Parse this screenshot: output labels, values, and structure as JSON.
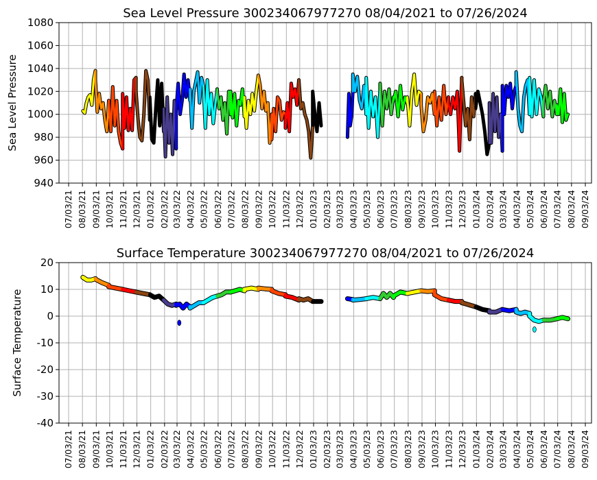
{
  "chart_data": [
    {
      "type": "line",
      "title": "Sea Level Pressure 300234067977270  08/04/2021 to 07/26/2024",
      "xlabel": "",
      "ylabel": "Sea Level Pressure",
      "ylim": [
        940,
        1080
      ],
      "yticks": [
        940,
        960,
        980,
        1000,
        1020,
        1040,
        1060,
        1080
      ],
      "key": "p",
      "grid": true
    },
    {
      "type": "line",
      "title": "Surface Temperature 300234067977270  08/04/2021 to 07/26/2024",
      "xlabel": "",
      "ylabel": "Surface Temperature",
      "ylim": [
        -40,
        20
      ],
      "yticks": [
        -40,
        -30,
        -20,
        -10,
        0,
        10,
        20
      ],
      "key": "t",
      "grid": true
    }
  ],
  "x_range": [
    "2021-07-03",
    "2024-09-03"
  ],
  "x_ticks": [
    "07/03/21",
    "08/03/21",
    "09/03/21",
    "10/03/21",
    "11/03/21",
    "12/03/21",
    "01/03/22",
    "02/03/22",
    "03/03/22",
    "04/03/22",
    "05/03/22",
    "06/03/22",
    "07/03/22",
    "08/03/22",
    "09/03/22",
    "10/03/22",
    "11/03/22",
    "12/03/22",
    "01/03/23",
    "02/03/23",
    "03/03/23",
    "04/03/23",
    "05/03/23",
    "06/03/23",
    "07/03/23",
    "08/03/23",
    "09/03/23",
    "10/03/23",
    "11/03/23",
    "12/03/23",
    "01/03/24",
    "02/03/24",
    "03/03/24",
    "04/03/24",
    "05/03/24",
    "06/03/24",
    "07/03/24",
    "08/03/24",
    "09/03/24"
  ],
  "month_colors": [
    "#000000",
    "#483d8b",
    "#0000ff",
    "#00bfff",
    "#00ffff",
    "#32cd32",
    "#00ff00",
    "#ffff00",
    "#ff8c00",
    "#ff4500",
    "#ff0000",
    "#8b4513"
  ],
  "segments": [
    {
      "start": "2021-08-04",
      "end": "2021-09-01",
      "p": [
        1003,
        1001,
        1010,
        1015,
        1017,
        1008,
        1030,
        1038
      ],
      "t": [
        14.5,
        13.5,
        13.5,
        14
      ]
    },
    {
      "start": "2021-09-01",
      "end": "2021-10-01",
      "p": [
        1030,
        1002,
        1018,
        1005,
        1010,
        995,
        985,
        1012
      ],
      "t": [
        13.8,
        12.5,
        11.5
      ]
    },
    {
      "start": "2021-10-01",
      "end": "2021-11-01",
      "p": [
        1010,
        985,
        1024,
        990,
        1012,
        985,
        975,
        970
      ],
      "t": [
        11,
        10.5,
        10
      ]
    },
    {
      "start": "2021-11-01",
      "end": "2021-12-01",
      "p": [
        1018,
        988,
        1015,
        986,
        1005,
        986,
        1030,
        1032
      ],
      "t": [
        10,
        9.5,
        9
      ]
    },
    {
      "start": "2021-12-01",
      "end": "2022-01-01",
      "p": [
        1020,
        996,
        980,
        977,
        1000,
        1038,
        1030,
        995
      ],
      "t": [
        9,
        8.5,
        8
      ]
    },
    {
      "start": "2022-01-01",
      "end": "2022-02-01",
      "p": [
        1015,
        978,
        975,
        1005,
        1030,
        990,
        1027,
        985
      ],
      "t": [
        8,
        7,
        7.5,
        6
      ]
    },
    {
      "start": "2022-02-01",
      "end": "2022-03-01",
      "p": [
        1005,
        963,
        1015,
        975,
        1000,
        965,
        1012,
        970
      ],
      "t": [
        6,
        4.5,
        4,
        4.5
      ]
    },
    {
      "start": "2022-03-01",
      "end": "2022-04-01",
      "p": [
        1003,
        1027,
        1000,
        1012,
        1035,
        1015,
        1030,
        1012
      ],
      "t": [
        4,
        4.5,
        3,
        4.5,
        3.5
      ]
    },
    {
      "start": "2022-04-01",
      "end": "2022-05-01",
      "p": [
        1022,
        988,
        1020,
        1028,
        1037,
        1010,
        1032,
        1025
      ],
      "t": [
        3,
        4,
        5,
        5
      ]
    },
    {
      "start": "2022-05-01",
      "end": "2022-06-01",
      "p": [
        1025,
        988,
        1030,
        1000,
        1018,
        992,
        1008,
        1022
      ],
      "t": [
        5,
        6,
        7,
        7.5
      ]
    },
    {
      "start": "2022-06-01",
      "end": "2022-07-01",
      "p": [
        1020,
        1005,
        1015,
        995,
        1010,
        983,
        1020,
        1000
      ],
      "t": [
        7.5,
        8,
        9,
        9
      ]
    },
    {
      "start": "2022-07-01",
      "end": "2022-08-01",
      "p": [
        1020,
        997,
        1018,
        990,
        1012,
        1008,
        1022,
        998
      ],
      "t": [
        9,
        9.5,
        10,
        9.5
      ]
    },
    {
      "start": "2022-08-01",
      "end": "2022-09-01",
      "p": [
        1015,
        988,
        1012,
        1000,
        1018,
        1003,
        1020,
        1034
      ],
      "t": [
        10,
        10.5,
        10
      ]
    },
    {
      "start": "2022-09-01",
      "end": "2022-10-01",
      "p": [
        1034,
        1025,
        1005,
        1020,
        1003,
        1010,
        975,
        1000
      ],
      "t": [
        10.5,
        10.2,
        10
      ]
    },
    {
      "start": "2022-10-01",
      "end": "2022-11-01",
      "p": [
        978,
        1005,
        985,
        1015,
        1012,
        995,
        1002,
        1000
      ],
      "t": [
        9.5,
        8.5,
        8
      ]
    },
    {
      "start": "2022-11-01",
      "end": "2022-12-01",
      "p": [
        988,
        1010,
        985,
        1027,
        1015,
        1022,
        1008,
        1030
      ],
      "t": [
        7.5,
        7,
        6
      ]
    },
    {
      "start": "2022-12-01",
      "end": "2023-01-01",
      "p": [
        1030,
        1005,
        1010,
        1000,
        995,
        985,
        962,
        990
      ],
      "t": [
        6.5,
        6,
        6.5,
        5.5
      ]
    },
    {
      "start": "2023-01-01",
      "end": "2023-01-20",
      "p": [
        1020,
        1000,
        985,
        1010,
        990
      ],
      "t": [
        5.5,
        5.5
      ]
    },
    {
      "start": "2023-03-20",
      "end": "2023-04-01",
      "p": [
        980,
        1018,
        990,
        998,
        1020
      ],
      "t": [
        6.5,
        6.2
      ]
    },
    {
      "start": "2023-04-01",
      "end": "2023-05-01",
      "p": [
        1035,
        1020,
        1033,
        1012,
        1005,
        1025,
        1000
      ],
      "t": [
        6,
        6.2,
        6.5
      ]
    },
    {
      "start": "2023-05-01",
      "end": "2023-06-01",
      "p": [
        1032,
        988,
        1020,
        998,
        1015,
        980,
        1022
      ],
      "t": [
        6.5,
        7,
        6.5
      ]
    },
    {
      "start": "2023-06-01",
      "end": "2023-07-01",
      "p": [
        1027,
        990,
        1020,
        1005,
        1022,
        1000,
        1015
      ],
      "t": [
        6.5,
        8.5,
        7,
        8.5,
        7
      ]
    },
    {
      "start": "2023-07-01",
      "end": "2023-08-01",
      "p": [
        1012,
        1020,
        998,
        1025,
        1004,
        1015,
        1010
      ],
      "t": [
        7.5,
        9,
        8.5
      ]
    },
    {
      "start": "2023-08-01",
      "end": "2023-09-01",
      "p": [
        1015,
        990,
        1020,
        1035,
        1008,
        1020,
        1018
      ],
      "t": [
        8.5,
        9,
        9.5
      ]
    },
    {
      "start": "2023-09-01",
      "end": "2023-10-01",
      "p": [
        1008,
        985,
        995,
        1015,
        1010,
        1018,
        1000
      ],
      "t": [
        9.5,
        9.2,
        9.5
      ]
    },
    {
      "start": "2023-10-01",
      "end": "2023-11-01",
      "p": [
        1020,
        990,
        1015,
        995,
        1025,
        1000,
        1015
      ],
      "t": [
        8,
        6.5,
        6
      ]
    },
    {
      "start": "2023-11-01",
      "end": "2023-12-01",
      "p": [
        1010,
        1000,
        1015,
        1005,
        1020,
        968,
        1032
      ],
      "t": [
        6,
        5.5,
        5.5
      ]
    },
    {
      "start": "2023-12-01",
      "end": "2024-01-01",
      "p": [
        1030,
        1010,
        990,
        1005,
        978,
        1015,
        998,
        1018
      ],
      "t": [
        5,
        4.5,
        4,
        3.5
      ]
    },
    {
      "start": "2024-01-01",
      "end": "2024-02-01",
      "p": [
        1005,
        1020,
        1010,
        1000,
        985,
        965,
        975
      ],
      "t": [
        3.5,
        2.5,
        2
      ]
    },
    {
      "start": "2024-02-01",
      "end": "2024-03-01",
      "p": [
        1010,
        975,
        1018,
        985,
        1015,
        980,
        1000,
        968
      ],
      "t": [
        1.5,
        1.5,
        2.5
      ]
    },
    {
      "start": "2024-03-01",
      "end": "2024-04-01",
      "p": [
        1025,
        1000,
        1025,
        1015,
        1027,
        1005,
        1020,
        1025
      ],
      "t": [
        2.5,
        2,
        2.5
      ]
    },
    {
      "start": "2024-04-01",
      "end": "2024-05-01",
      "p": [
        1037,
        1005,
        990,
        985,
        1015,
        1025,
        1030,
        1000
      ],
      "t": [
        1.5,
        1,
        1.5,
        1
      ]
    },
    {
      "start": "2024-05-01",
      "end": "2024-06-01",
      "p": [
        1032,
        998,
        1030,
        1000,
        1022,
        1015,
        998
      ],
      "t": [
        0,
        -1.5,
        -2,
        -1.5
      ]
    },
    {
      "start": "2024-06-01",
      "end": "2024-07-01",
      "p": [
        1010,
        1025,
        1005,
        1020,
        998,
        1012,
        1000
      ],
      "t": [
        -1.5,
        -1.5,
        -1
      ]
    },
    {
      "start": "2024-07-01",
      "end": "2024-07-26",
      "p": [
        1008,
        1000,
        1022,
        993,
        1018,
        995,
        1000
      ],
      "t": [
        -1,
        -0.5,
        -1
      ]
    }
  ],
  "outliers_t": [
    {
      "date": "2022-03-08",
      "value": -2.5
    },
    {
      "date": "2024-05-12",
      "value": -5
    }
  ]
}
